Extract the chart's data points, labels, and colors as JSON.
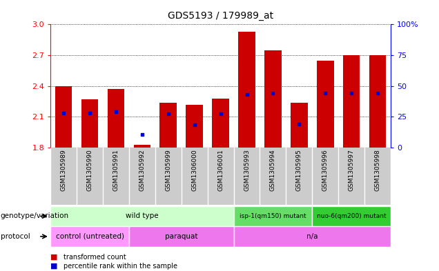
{
  "title": "GDS5193 / 179989_at",
  "samples": [
    "GSM1305989",
    "GSM1305990",
    "GSM1305991",
    "GSM1305992",
    "GSM1305999",
    "GSM1306000",
    "GSM1306001",
    "GSM1305993",
    "GSM1305994",
    "GSM1305995",
    "GSM1305996",
    "GSM1305997",
    "GSM1305998"
  ],
  "transformed_count": [
    2.4,
    2.27,
    2.37,
    1.83,
    2.24,
    2.22,
    2.28,
    2.93,
    2.75,
    2.24,
    2.65,
    2.7,
    2.7
  ],
  "percentile_rank": [
    2.14,
    2.14,
    2.15,
    1.93,
    2.13,
    2.02,
    2.13,
    2.32,
    2.33,
    2.03,
    2.33,
    2.33,
    2.33
  ],
  "ylim": [
    1.8,
    3.0
  ],
  "yticks_left": [
    1.8,
    2.1,
    2.4,
    2.7,
    3.0
  ],
  "yticks_right_vals": [
    0,
    25,
    50,
    75,
    100
  ],
  "bar_color": "#cc0000",
  "dot_color": "#0000cc",
  "genotype_groups": [
    {
      "text": "wild type",
      "start": 0,
      "end": 6,
      "color": "#ccffcc"
    },
    {
      "text": "isp-1(qm150) mutant",
      "start": 7,
      "end": 9,
      "color": "#66dd66"
    },
    {
      "text": "nuo-6(qm200) mutant",
      "start": 10,
      "end": 12,
      "color": "#33cc33"
    }
  ],
  "protocol_groups": [
    {
      "text": "control (untreated)",
      "start": 0,
      "end": 2,
      "color": "#ff99ff"
    },
    {
      "text": "paraquat",
      "start": 3,
      "end": 6,
      "color": "#ee77ee"
    },
    {
      "text": "n/a",
      "start": 7,
      "end": 12,
      "color": "#ee77ee"
    }
  ],
  "legend_items": [
    {
      "label": "transformed count",
      "color": "#cc0000"
    },
    {
      "label": "percentile rank within the sample",
      "color": "#0000cc"
    }
  ],
  "genotype_label": "genotype/variation",
  "protocol_label": "protocol"
}
